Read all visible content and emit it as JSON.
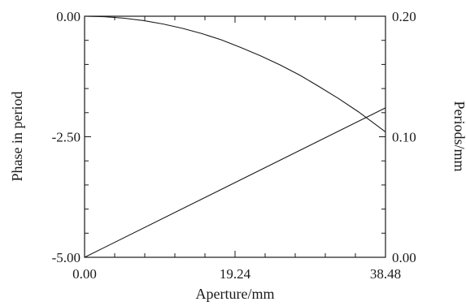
{
  "chart_data": {
    "type": "line",
    "xlabel": "Aperture/mm",
    "ylabel_left": "Phase in period",
    "ylabel_right": "Periods/mm",
    "xlim": [
      0,
      38.48
    ],
    "ylim_left": [
      -5.0,
      0.0
    ],
    "ylim_right": [
      0.0,
      0.2
    ],
    "x_tick_labels": [
      "0.00",
      "19.24",
      "38.48"
    ],
    "y_left_tick_labels": [
      "0.00",
      "-2.50",
      "-5.00"
    ],
    "y_right_tick_labels": [
      "0.20",
      "0.10",
      "0.00"
    ],
    "grid": false,
    "series": [
      {
        "axis": "left",
        "x": [
          0,
          2.5,
          5,
          7.5,
          10,
          12.5,
          15,
          17.5,
          20,
          22.5,
          25,
          27.5,
          30,
          32.5,
          35,
          37.5,
          38.48
        ],
        "y": [
          0,
          -0.01,
          -0.04,
          -0.09,
          -0.16,
          -0.25,
          -0.36,
          -0.49,
          -0.65,
          -0.82,
          -1.01,
          -1.22,
          -1.46,
          -1.71,
          -1.98,
          -2.28,
          -2.4
        ]
      },
      {
        "axis": "right",
        "x": [
          0,
          38.48
        ],
        "y": [
          0.0,
          0.124
        ]
      }
    ]
  }
}
